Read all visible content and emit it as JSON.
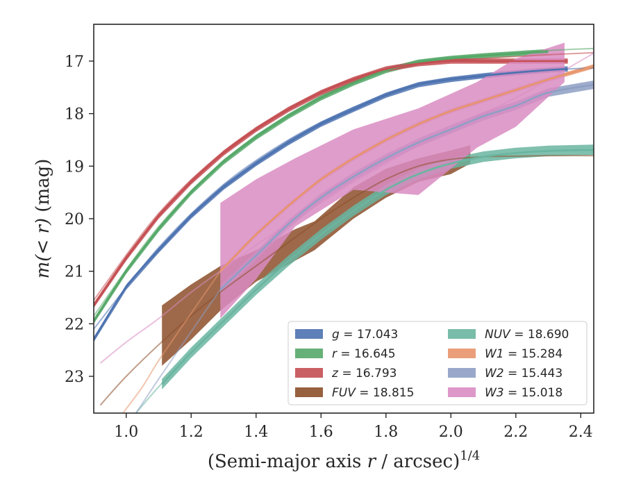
{
  "chart_data": {
    "type": "line",
    "xlabel": "(Semi-major axis r / arcsec)",
    "xlabel_prefix": "(Semi-major axis ",
    "xlabel_var": "r",
    "xlabel_suffix": " / arcsec)",
    "xlabel_exponent": "1/4",
    "ylabel": "m(< r) (mag)",
    "ylabel_math": "m(< r)",
    "ylabel_unit": " (mag)",
    "xlim": [
      0.9,
      2.44
    ],
    "ylim": [
      23.7,
      16.3
    ],
    "y_inverted": true,
    "grid": false,
    "xticks": [
      1.0,
      1.2,
      1.4,
      1.6,
      1.8,
      2.0,
      2.2,
      2.4
    ],
    "xtick_labels": [
      "1.0",
      "1.2",
      "1.4",
      "1.6",
      "1.8",
      "2.0",
      "2.2",
      "2.4"
    ],
    "yticks": [
      17,
      18,
      19,
      20,
      21,
      22,
      23
    ],
    "ytick_labels": [
      "17",
      "18",
      "19",
      "20",
      "21",
      "22",
      "23"
    ],
    "legend": {
      "placement": "lower-right",
      "columns": 2
    },
    "series": [
      {
        "name": "g = 17.043",
        "legend_var": "g",
        "legend_value": "17.043",
        "color": "#4c72b0",
        "x": [
          0.9,
          1.0,
          1.1,
          1.2,
          1.3,
          1.4,
          1.5,
          1.6,
          1.7,
          1.8,
          1.9,
          2.0,
          2.1,
          2.2,
          2.3,
          2.36
        ],
        "y": [
          22.3,
          21.3,
          20.6,
          19.95,
          19.4,
          18.95,
          18.55,
          18.2,
          17.92,
          17.65,
          17.45,
          17.35,
          17.28,
          17.22,
          17.17,
          17.15
        ],
        "ext_x": [
          0.9,
          1.1,
          1.3,
          1.5,
          1.7,
          1.9,
          2.1,
          2.3,
          2.44
        ],
        "ext_y": [
          22.1,
          20.55,
          19.35,
          18.5,
          17.88,
          17.43,
          17.27,
          17.17,
          17.13
        ],
        "band": 0.05
      },
      {
        "name": "r = 16.645",
        "legend_var": "r",
        "legend_value": "16.645",
        "color": "#55a868",
        "x": [
          0.9,
          1.0,
          1.1,
          1.2,
          1.3,
          1.4,
          1.5,
          1.6,
          1.7,
          1.8,
          1.9,
          2.0,
          2.1,
          2.2,
          2.3
        ],
        "y": [
          21.95,
          21.0,
          20.2,
          19.5,
          18.92,
          18.45,
          18.05,
          17.7,
          17.42,
          17.18,
          17.02,
          16.95,
          16.9,
          16.86,
          16.82
        ],
        "ext_x": [
          0.9,
          1.1,
          1.3,
          1.5,
          1.7,
          1.9,
          2.1,
          2.3,
          2.44
        ],
        "ext_y": [
          21.85,
          20.15,
          18.9,
          18.02,
          17.4,
          17.0,
          16.88,
          16.8,
          16.76
        ],
        "band": 0.05
      },
      {
        "name": "z = 16.793",
        "legend_var": "z",
        "legend_value": "16.793",
        "color": "#c44e52",
        "x": [
          0.9,
          1.0,
          1.1,
          1.2,
          1.3,
          1.4,
          1.5,
          1.6,
          1.7,
          1.8,
          1.9,
          2.0,
          2.1,
          2.2,
          2.3,
          2.36
        ],
        "y": [
          21.65,
          20.75,
          19.95,
          19.3,
          18.75,
          18.3,
          17.92,
          17.6,
          17.35,
          17.15,
          17.05,
          17.0,
          17.0,
          17.0,
          17.0,
          17.0
        ],
        "ext_x": [
          0.9,
          1.1,
          1.3,
          1.5,
          1.7,
          1.9,
          2.1,
          2.3,
          2.44
        ],
        "ext_y": [
          21.55,
          19.9,
          18.72,
          17.9,
          17.33,
          17.04,
          16.95,
          16.88,
          16.84
        ],
        "band": 0.05
      },
      {
        "name": "FUV = 18.815",
        "legend_var": "FUV",
        "legend_value": "18.815",
        "color": "#8c4f2a",
        "x": [
          1.11,
          1.2,
          1.29,
          1.4,
          1.52,
          1.58,
          1.7,
          1.8,
          1.9,
          2.0,
          2.06
        ],
        "y": [
          22.25,
          21.75,
          21.3,
          20.95,
          20.45,
          20.3,
          19.7,
          19.3,
          19.05,
          18.95,
          18.8
        ],
        "band_lo": [
          22.8,
          22.3,
          21.75,
          21.2,
          20.8,
          20.6,
          20.0,
          19.6,
          19.3,
          19.15,
          18.95
        ],
        "band_hi": [
          21.65,
          21.25,
          20.9,
          20.6,
          20.2,
          20.05,
          19.4,
          19.05,
          18.85,
          18.7,
          18.6
        ],
        "ext_x": [
          0.92,
          1.0,
          1.1,
          1.2,
          1.3,
          1.4,
          1.5,
          1.6,
          1.7,
          1.8,
          1.9,
          2.0,
          2.1,
          2.2,
          2.3,
          2.44
        ],
        "ext_y": [
          23.55,
          23.0,
          22.4,
          21.85,
          21.35,
          20.9,
          20.45,
          20.0,
          19.6,
          19.25,
          19.0,
          18.87,
          18.82,
          18.81,
          18.8,
          18.8
        ],
        "band": 0
      },
      {
        "name": "NUV = 18.690",
        "legend_var": "NUV",
        "legend_value": "18.690",
        "color": "#6ab5a0",
        "x": [
          1.11,
          1.2,
          1.3,
          1.4,
          1.5,
          1.6,
          1.7,
          1.8,
          1.9,
          2.0,
          2.1,
          2.2,
          2.3,
          2.44
        ],
        "y": [
          23.15,
          22.55,
          21.95,
          21.35,
          20.8,
          20.3,
          19.85,
          19.45,
          19.15,
          18.95,
          18.82,
          18.75,
          18.71,
          18.69
        ],
        "ext_x": [
          1.03,
          1.1,
          1.2,
          1.3,
          1.4,
          1.5,
          1.6,
          1.7,
          1.8,
          1.9,
          2.0,
          2.2,
          2.44
        ],
        "ext_y": [
          23.7,
          23.2,
          22.55,
          21.95,
          21.35,
          20.8,
          20.3,
          19.85,
          19.45,
          19.15,
          18.95,
          18.75,
          18.69
        ],
        "band": 0.1
      },
      {
        "name": "W1 = 15.284",
        "legend_var": "W1",
        "legend_value": "15.284",
        "color": "#e8956b",
        "x": [
          1.29,
          1.4,
          1.5,
          1.6,
          1.7,
          1.8,
          1.9,
          2.0,
          2.1,
          2.2,
          2.3,
          2.44
        ],
        "y": [
          21.0,
          20.3,
          19.75,
          19.25,
          18.85,
          18.5,
          18.2,
          17.95,
          17.75,
          17.55,
          17.35,
          17.1
        ],
        "ext_x": [
          0.99,
          1.05,
          1.1,
          1.2,
          1.29
        ],
        "ext_y": [
          23.7,
          23.2,
          22.7,
          21.8,
          21.0
        ],
        "band": 0.04
      },
      {
        "name": "W2 = 15.443",
        "legend_var": "W2",
        "legend_value": "15.443",
        "color": "#8e9fc4",
        "x": [
          1.29,
          1.4,
          1.5,
          1.6,
          1.7,
          1.8,
          1.9,
          2.0,
          2.1,
          2.2,
          2.3,
          2.44
        ],
        "y": [
          21.35,
          20.7,
          20.1,
          19.6,
          19.2,
          18.85,
          18.55,
          18.3,
          18.05,
          17.85,
          17.6,
          17.45
        ],
        "ext_x": [
          1.03,
          1.1,
          1.2,
          1.29
        ],
        "ext_y": [
          23.7,
          23.05,
          22.15,
          21.35
        ],
        "band": 0.08
      },
      {
        "name": "W3 = 15.018",
        "legend_var": "W3",
        "legend_value": "15.018",
        "color": "#d98cc2",
        "x": [
          1.29,
          1.4,
          1.52,
          1.7,
          1.9,
          2.08,
          2.2,
          2.35
        ],
        "y": [
          20.8,
          20.1,
          19.2,
          18.9,
          18.7,
          18.2,
          17.9,
          17.5
        ],
        "band_lo": [
          21.9,
          21.15,
          20.15,
          19.45,
          19.55,
          18.65,
          18.25,
          17.4
        ],
        "band_hi": [
          19.7,
          19.25,
          18.85,
          18.3,
          17.9,
          17.4,
          16.95,
          16.65
        ],
        "ext_x": [
          0.92,
          1.0,
          1.1,
          1.2,
          1.3,
          1.4,
          1.5,
          1.6,
          1.7,
          1.8,
          1.9,
          2.0,
          2.1,
          2.2,
          2.3,
          2.44
        ],
        "ext_y": [
          22.75,
          22.35,
          21.9,
          21.4,
          20.95,
          20.5,
          20.1,
          19.7,
          19.3,
          18.95,
          18.6,
          18.3,
          18.0,
          17.7,
          17.35,
          16.85
        ],
        "band": 0
      }
    ]
  }
}
